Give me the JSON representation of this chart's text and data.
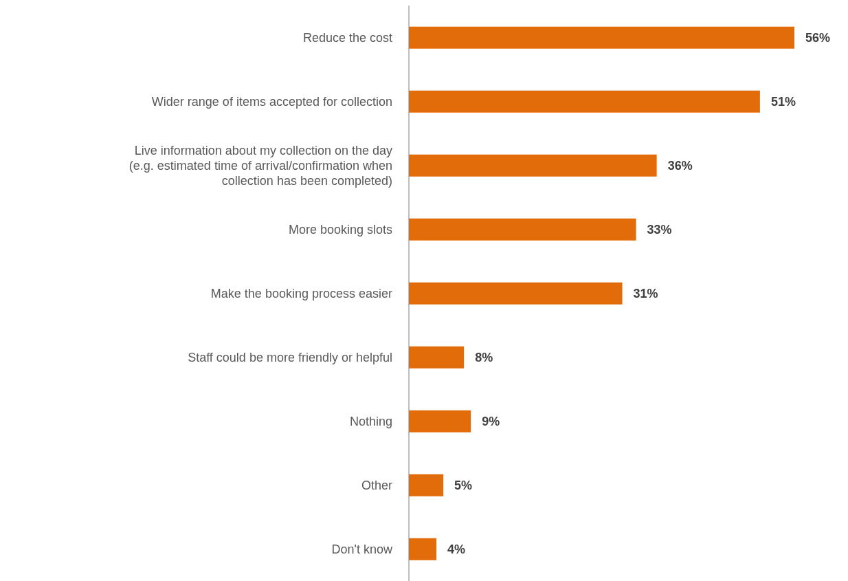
{
  "chart_data": {
    "type": "bar",
    "orientation": "horizontal",
    "categories": [
      "Reduce the cost",
      "Wider range of items accepted for collection",
      "Live information about my collection on the day (e.g. estimated time of arrival/confirmation when collection has been completed)",
      "More booking slots",
      "Make the booking process easier",
      "Staff could be more friendly or helpful",
      "Nothing",
      "Other",
      "Don't know"
    ],
    "values": [
      56,
      51,
      36,
      33,
      31,
      8,
      9,
      5,
      4
    ],
    "value_labels": [
      "56%",
      "51%",
      "36%",
      "33%",
      "31%",
      "8%",
      "9%",
      "5%",
      "4%"
    ],
    "color": "#e36c0a",
    "grid": false,
    "legend": false
  }
}
